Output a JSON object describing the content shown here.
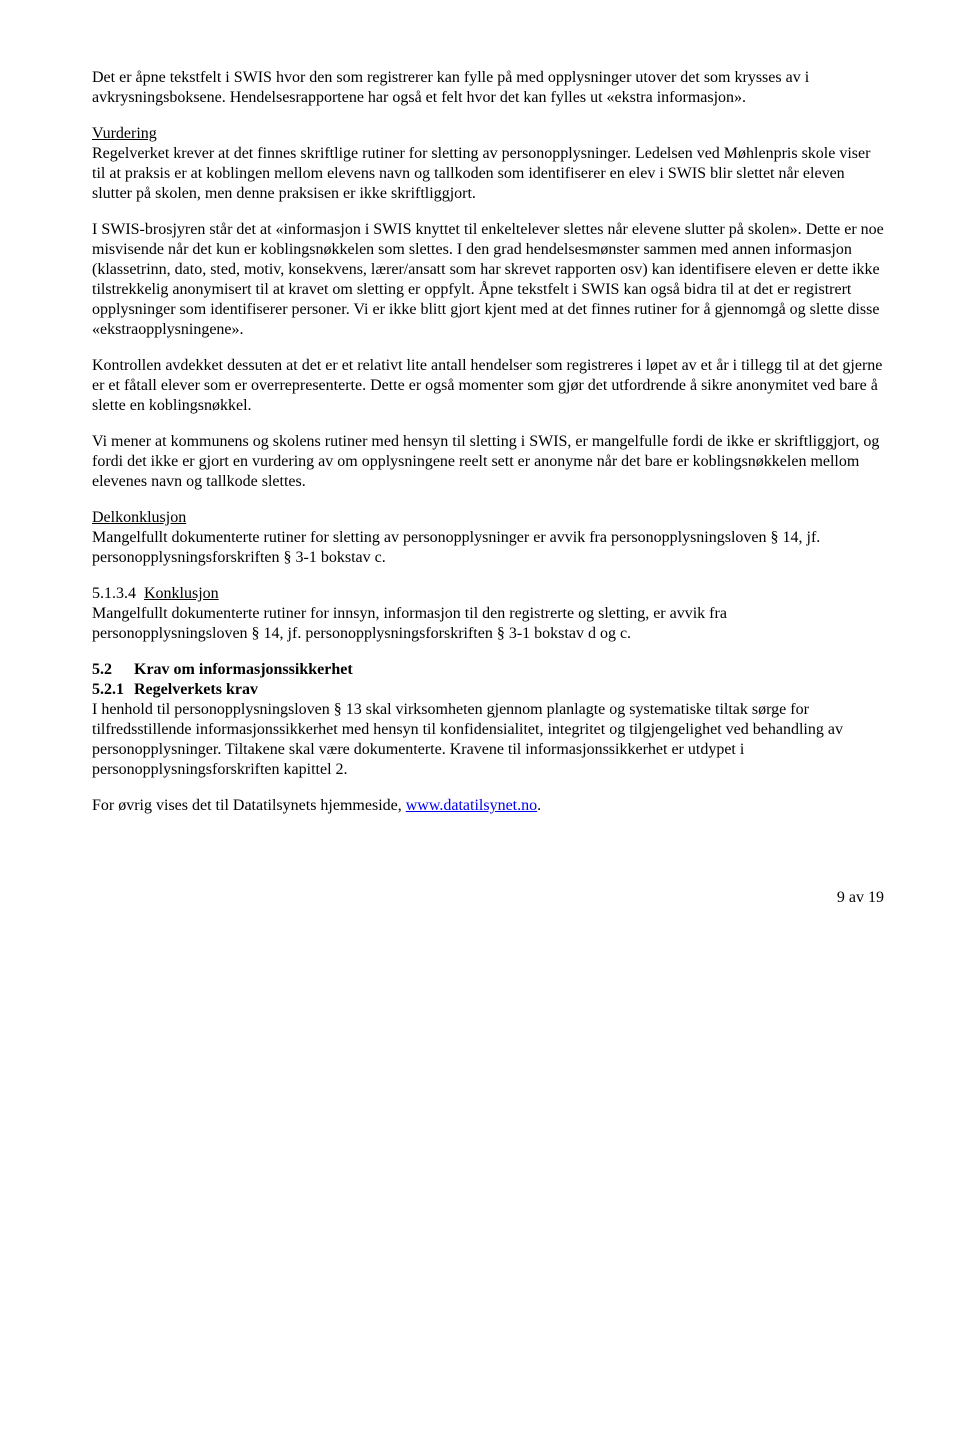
{
  "para1": "Det er åpne tekstfelt i SWIS hvor den som registrerer kan fylle på med opplysninger utover det som krysses av i avkrysningsboksene. Hendelsesrapportene har også et felt hvor det kan fylles ut «ekstra informasjon».",
  "vurdering_heading": "Vurdering",
  "para2": "Regelverket krever at det finnes skriftlige rutiner for sletting av personopplysninger. Ledelsen ved Møhlenpris skole viser til at praksis er at koblingen mellom elevens navn og tallkoden som identifiserer en elev i SWIS blir slettet når eleven slutter på skolen, men denne praksisen er ikke skriftliggjort.",
  "para3": "I SWIS-brosjyren står det at «informasjon i SWIS knyttet til enkeltelever slettes når elevene slutter på skolen». Dette er noe misvisende når det kun er koblingsnøkkelen som slettes. I den grad hendelsesmønster sammen med annen informasjon (klassetrinn, dato, sted, motiv, konsekvens, lærer/ansatt som har skrevet rapporten osv) kan identifisere eleven er dette ikke tilstrekkelig anonymisert til at kravet om sletting er oppfylt. Åpne tekstfelt i SWIS kan også bidra til at det er registrert opplysninger som identifiserer personer. Vi er ikke blitt gjort kjent med at det finnes rutiner for å gjennomgå og slette disse «ekstraopplysningene».",
  "para4": "Kontrollen avdekket dessuten at det er et relativt lite antall hendelser som registreres i løpet av et år i tillegg til at det gjerne er et fåtall elever som er overrepresenterte. Dette er også momenter som gjør det utfordrende å sikre anonymitet ved bare å slette en koblingsnøkkel.",
  "para5": "Vi mener at kommunens og skolens rutiner med hensyn til sletting i SWIS, er mangelfulle fordi de ikke er skriftliggjort, og fordi det ikke er gjort en vurdering av om opplysningene reelt sett er anonyme når det bare er koblingsnøkkelen mellom elevenes navn og tallkode slettes.",
  "delkonklusjon_heading": "Delkonklusjon",
  "para6": "Mangelfullt dokumenterte rutiner for sletting av personopplysninger er avvik fra personopplysningsloven § 14, jf. personopplysningsforskriften § 3-1 bokstav c.",
  "sec5134_num": "5.1.3.4",
  "sec5134_title": "Konklusjon",
  "para7": "Mangelfullt dokumenterte rutiner for innsyn, informasjon til den registrerte og sletting, er avvik fra personopplysningsloven § 14, jf. personopplysningsforskriften § 3-1 bokstav d og c.",
  "sec52_num": "5.2",
  "sec52_title": "Krav om informasjonssikkerhet",
  "sec521_num": "5.2.1",
  "sec521_title": "Regelverkets krav",
  "para8": "I henhold til personopplysningsloven § 13 skal virksomheten gjennom planlagte og systematiske tiltak sørge for tilfredsstillende informasjonssikkerhet med hensyn til konfidensialitet, integritet og tilgjengelighet ved behandling av personopplysninger. Tiltakene skal være dokumenterte. Kravene til informasjonssikkerhet er utdypet i personopplysningsforskriften kapittel 2.",
  "para9_prefix": "For øvrig vises det til Datatilsynets hjemmeside, ",
  "link_text": "www.datatilsynet.no",
  "para9_suffix": ".",
  "page_number": "9 av 19"
}
